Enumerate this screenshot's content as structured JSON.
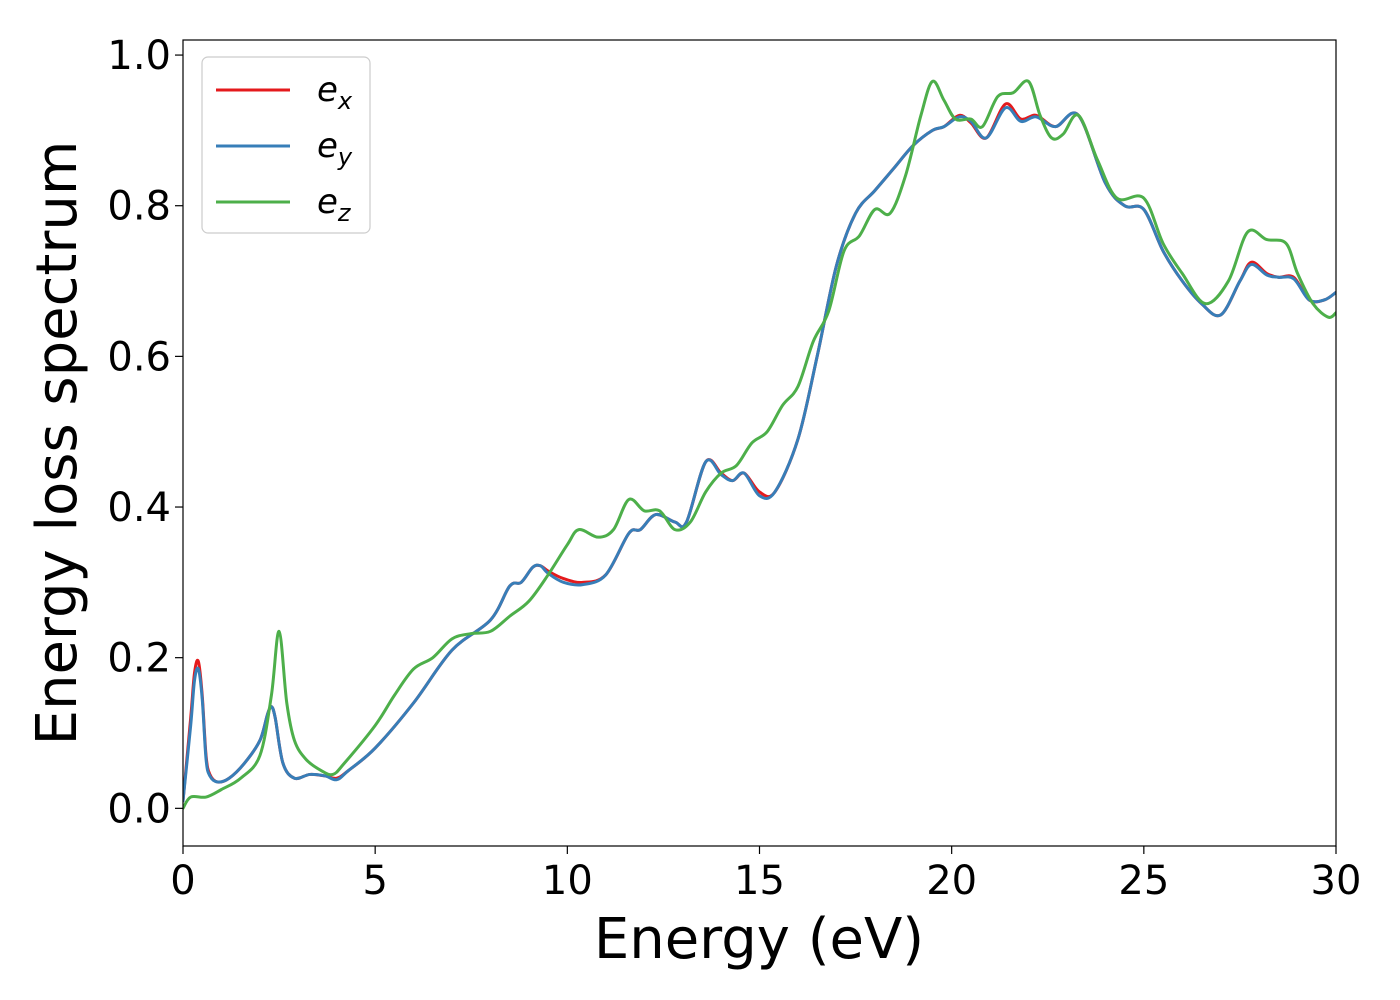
{
  "chart_data": {
    "type": "line",
    "xlabel": "Energy (eV)",
    "ylabel": "Energy loss spectrum",
    "xlim": [
      0,
      30
    ],
    "ylim": [
      -0.05,
      1.02
    ],
    "xticks": [
      0,
      5,
      10,
      15,
      20,
      25,
      30
    ],
    "yticks": [
      0.0,
      0.2,
      0.4,
      0.6,
      0.8,
      1.0
    ],
    "xtick_labels": [
      "0",
      "5",
      "10",
      "15",
      "20",
      "25",
      "30"
    ],
    "ytick_labels": [
      "0.0",
      "0.2",
      "0.4",
      "0.6",
      "0.8",
      "1.0"
    ],
    "grid": false,
    "legend_position": "top-left",
    "series": [
      {
        "name": "e_x",
        "legend_base": "e",
        "legend_sub": "x",
        "color": "#e41a1c",
        "x": [
          0,
          0.2,
          0.3,
          0.4,
          0.5,
          0.6,
          0.7,
          0.9,
          1.2,
          1.6,
          2.0,
          2.2,
          2.3,
          2.4,
          2.6,
          2.9,
          3.3,
          3.7,
          4.0,
          4.3,
          5.0,
          6.0,
          7.0,
          8.0,
          8.5,
          8.8,
          9.1,
          9.3,
          9.5,
          9.9,
          10.4,
          11.0,
          11.6,
          11.9,
          12.3,
          12.8,
          13.1,
          13.6,
          14.0,
          14.3,
          14.6,
          15.0,
          15.4,
          16.0,
          16.5,
          17.0,
          17.5,
          18.0,
          18.5,
          19.0,
          19.5,
          19.8,
          20.2,
          20.5,
          20.9,
          21.4,
          21.8,
          22.2,
          22.7,
          23.3,
          24.0,
          24.5,
          25.0,
          25.5,
          26.0,
          26.5,
          27.0,
          27.5,
          27.8,
          28.2,
          28.5,
          28.9,
          29.3,
          29.7,
          30.0
        ],
        "y": [
          0.01,
          0.12,
          0.18,
          0.195,
          0.15,
          0.07,
          0.045,
          0.035,
          0.04,
          0.06,
          0.09,
          0.125,
          0.135,
          0.12,
          0.06,
          0.04,
          0.045,
          0.043,
          0.04,
          0.05,
          0.08,
          0.14,
          0.21,
          0.25,
          0.295,
          0.3,
          0.32,
          0.322,
          0.315,
          0.305,
          0.3,
          0.31,
          0.365,
          0.37,
          0.39,
          0.38,
          0.38,
          0.46,
          0.445,
          0.435,
          0.445,
          0.42,
          0.42,
          0.49,
          0.6,
          0.72,
          0.79,
          0.82,
          0.85,
          0.88,
          0.9,
          0.905,
          0.92,
          0.91,
          0.89,
          0.935,
          0.915,
          0.92,
          0.905,
          0.92,
          0.83,
          0.8,
          0.795,
          0.74,
          0.7,
          0.67,
          0.655,
          0.7,
          0.725,
          0.71,
          0.705,
          0.705,
          0.675,
          0.675,
          0.685
        ]
      },
      {
        "name": "e_y",
        "legend_base": "e",
        "legend_sub": "y",
        "color": "#377eb8",
        "x": [
          0,
          0.2,
          0.3,
          0.4,
          0.5,
          0.6,
          0.7,
          0.9,
          1.2,
          1.6,
          2.0,
          2.2,
          2.3,
          2.4,
          2.6,
          2.9,
          3.3,
          3.7,
          4.0,
          4.3,
          5.0,
          6.0,
          7.0,
          8.0,
          8.5,
          8.8,
          9.1,
          9.3,
          9.5,
          9.9,
          10.4,
          11.0,
          11.6,
          11.9,
          12.3,
          12.8,
          13.1,
          13.6,
          14.0,
          14.3,
          14.6,
          15.0,
          15.4,
          16.0,
          16.5,
          17.0,
          17.5,
          18.0,
          18.5,
          19.0,
          19.5,
          19.8,
          20.2,
          20.5,
          20.9,
          21.4,
          21.8,
          22.2,
          22.7,
          23.3,
          24.0,
          24.5,
          25.0,
          25.5,
          26.0,
          26.5,
          27.0,
          27.5,
          27.8,
          28.2,
          28.5,
          28.9,
          29.3,
          29.7,
          30.0
        ],
        "y": [
          0.01,
          0.11,
          0.17,
          0.185,
          0.145,
          0.065,
          0.043,
          0.035,
          0.04,
          0.06,
          0.09,
          0.125,
          0.135,
          0.12,
          0.06,
          0.04,
          0.045,
          0.043,
          0.038,
          0.05,
          0.08,
          0.14,
          0.21,
          0.25,
          0.295,
          0.3,
          0.32,
          0.322,
          0.312,
          0.3,
          0.297,
          0.31,
          0.365,
          0.37,
          0.39,
          0.38,
          0.38,
          0.46,
          0.443,
          0.435,
          0.445,
          0.415,
          0.42,
          0.49,
          0.6,
          0.72,
          0.79,
          0.82,
          0.85,
          0.88,
          0.9,
          0.905,
          0.918,
          0.912,
          0.89,
          0.93,
          0.912,
          0.918,
          0.905,
          0.92,
          0.83,
          0.8,
          0.795,
          0.74,
          0.7,
          0.67,
          0.655,
          0.7,
          0.722,
          0.708,
          0.705,
          0.703,
          0.675,
          0.675,
          0.685
        ]
      },
      {
        "name": "e_z",
        "legend_base": "e",
        "legend_sub": "z",
        "color": "#4daf4a",
        "x": [
          0,
          0.2,
          0.6,
          1.0,
          1.5,
          2.0,
          2.3,
          2.5,
          2.7,
          2.9,
          3.2,
          3.6,
          3.9,
          4.2,
          5.0,
          5.5,
          6.0,
          6.5,
          7.0,
          7.5,
          8.0,
          8.5,
          9.0,
          9.5,
          10.0,
          10.3,
          10.8,
          11.2,
          11.6,
          12.0,
          12.4,
          12.8,
          13.2,
          13.6,
          14.0,
          14.4,
          14.8,
          15.2,
          15.6,
          16.0,
          16.4,
          16.8,
          17.2,
          17.6,
          18.0,
          18.4,
          18.8,
          19.2,
          19.5,
          19.8,
          20.1,
          20.5,
          20.8,
          21.2,
          21.6,
          22.0,
          22.3,
          22.6,
          22.9,
          23.3,
          23.8,
          24.3,
          25.0,
          25.5,
          26.0,
          26.6,
          27.2,
          27.7,
          28.2,
          28.7,
          29.0,
          29.4,
          29.8,
          30.0
        ],
        "y": [
          0.0,
          0.015,
          0.015,
          0.025,
          0.04,
          0.07,
          0.15,
          0.235,
          0.14,
          0.09,
          0.065,
          0.05,
          0.045,
          0.06,
          0.11,
          0.15,
          0.185,
          0.2,
          0.225,
          0.232,
          0.235,
          0.255,
          0.275,
          0.31,
          0.35,
          0.37,
          0.36,
          0.37,
          0.41,
          0.395,
          0.395,
          0.37,
          0.38,
          0.42,
          0.445,
          0.455,
          0.485,
          0.5,
          0.535,
          0.56,
          0.62,
          0.66,
          0.74,
          0.76,
          0.795,
          0.79,
          0.84,
          0.92,
          0.965,
          0.94,
          0.915,
          0.915,
          0.905,
          0.945,
          0.95,
          0.965,
          0.92,
          0.89,
          0.895,
          0.92,
          0.86,
          0.81,
          0.81,
          0.75,
          0.71,
          0.67,
          0.7,
          0.765,
          0.755,
          0.75,
          0.71,
          0.67,
          0.652,
          0.658
        ]
      }
    ]
  }
}
